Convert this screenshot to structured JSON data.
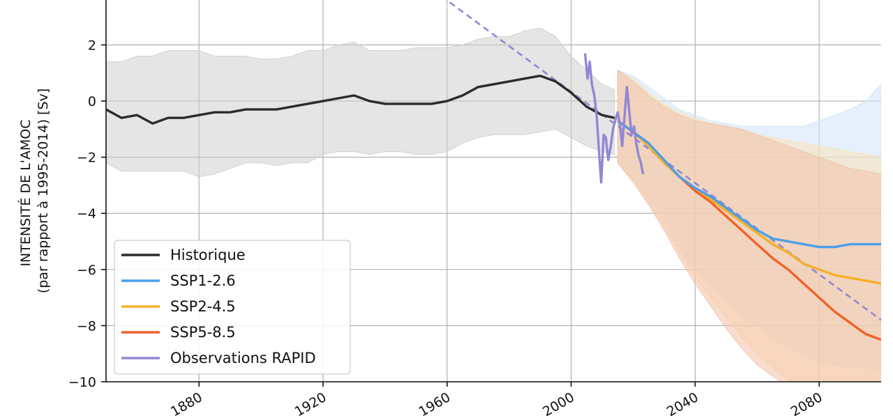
{
  "chart_data": {
    "type": "line",
    "title": "",
    "xlabel": "",
    "ylabel": [
      "INTENSITÉ DE L'AMOC",
      "(par rapport à 1995-2014) [Sv]"
    ],
    "xlim": [
      1850,
      2100
    ],
    "ylim": [
      -10,
      3.6
    ],
    "x_ticks": [
      1880,
      1920,
      1960,
      2000,
      2040,
      2080
    ],
    "y_ticks": [
      2,
      0,
      -2,
      -4,
      -6,
      -8,
      -10
    ],
    "y_tick_labels": [
      "2",
      "0",
      "−2",
      "−4",
      "−6",
      "−8",
      "−10"
    ],
    "grid": true,
    "legend_position": "lower-left",
    "series": [
      {
        "name": "Historique",
        "color": "#2b2b2b",
        "x": [
          1850,
          1855,
          1860,
          1865,
          1870,
          1875,
          1880,
          1885,
          1890,
          1895,
          1900,
          1905,
          1910,
          1915,
          1920,
          1925,
          1930,
          1935,
          1940,
          1945,
          1950,
          1955,
          1960,
          1965,
          1970,
          1975,
          1980,
          1985,
          1990,
          1995,
          2000,
          2005,
          2010,
          2014
        ],
        "y": [
          -0.3,
          -0.6,
          -0.5,
          -0.8,
          -0.6,
          -0.6,
          -0.5,
          -0.4,
          -0.4,
          -0.3,
          -0.3,
          -0.3,
          -0.2,
          -0.1,
          0.0,
          0.1,
          0.2,
          0.0,
          -0.1,
          -0.1,
          -0.1,
          -0.1,
          0.0,
          0.2,
          0.5,
          0.6,
          0.7,
          0.8,
          0.9,
          0.7,
          0.3,
          -0.2,
          -0.5,
          -0.6
        ],
        "band": {
          "color": "#cfcfcf",
          "upper": [
            1.4,
            1.4,
            1.6,
            1.6,
            1.8,
            1.8,
            1.8,
            1.6,
            1.6,
            1.6,
            1.5,
            1.5,
            1.6,
            1.8,
            1.8,
            2.0,
            2.1,
            1.8,
            1.8,
            1.8,
            1.9,
            1.9,
            1.9,
            2.0,
            2.2,
            2.3,
            2.3,
            2.5,
            2.6,
            2.3,
            1.6,
            1.1,
            0.6,
            0.4
          ],
          "lower": [
            -2.2,
            -2.5,
            -2.5,
            -2.5,
            -2.5,
            -2.5,
            -2.7,
            -2.6,
            -2.4,
            -2.2,
            -2.2,
            -2.3,
            -2.2,
            -2.2,
            -1.9,
            -1.8,
            -1.8,
            -1.9,
            -1.8,
            -1.8,
            -1.9,
            -1.9,
            -1.8,
            -1.5,
            -1.3,
            -1.2,
            -1.2,
            -1.2,
            -1.1,
            -1.0,
            -1.3,
            -1.6,
            -1.8,
            -1.9
          ]
        }
      },
      {
        "name": "SSP1-2.6",
        "color": "#4a9fe8",
        "x": [
          2015,
          2020,
          2025,
          2030,
          2035,
          2040,
          2045,
          2050,
          2055,
          2060,
          2065,
          2070,
          2075,
          2080,
          2085,
          2090,
          2095,
          2100
        ],
        "y": [
          -0.7,
          -1.1,
          -1.5,
          -2.1,
          -2.7,
          -3.1,
          -3.4,
          -3.8,
          -4.2,
          -4.6,
          -4.9,
          -5.0,
          -5.1,
          -5.2,
          -5.2,
          -5.1,
          -5.1,
          -5.1
        ],
        "band": {
          "color": "#cfe4fa",
          "upper": [
            1.1,
            0.9,
            0.5,
            0.1,
            -0.3,
            -0.5,
            -0.7,
            -0.8,
            -0.9,
            -0.9,
            -0.9,
            -0.9,
            -0.9,
            -0.7,
            -0.5,
            -0.3,
            0.0,
            0.6
          ],
          "lower": [
            -2.2,
            -2.8,
            -3.5,
            -4.3,
            -5.2,
            -6.0,
            -6.6,
            -7.1,
            -7.6,
            -8.0,
            -8.4,
            -8.8,
            -9.0,
            -9.3,
            -9.4,
            -9.5,
            -9.5,
            -9.6
          ]
        }
      },
      {
        "name": "SSP2-4.5",
        "color": "#f5b02a",
        "x": [
          2015,
          2020,
          2025,
          2030,
          2035,
          2040,
          2045,
          2050,
          2055,
          2060,
          2065,
          2070,
          2075,
          2080,
          2085,
          2090,
          2095,
          2100
        ],
        "y": [
          -0.7,
          -1.1,
          -1.6,
          -2.2,
          -2.7,
          -3.1,
          -3.5,
          -3.9,
          -4.3,
          -4.7,
          -5.1,
          -5.4,
          -5.8,
          -6.0,
          -6.2,
          -6.3,
          -6.4,
          -6.5
        ],
        "band": {
          "color": "#fbe2b8",
          "upper": [
            1.1,
            0.8,
            0.3,
            -0.1,
            -0.4,
            -0.6,
            -0.8,
            -0.9,
            -1.0,
            -1.2,
            -1.3,
            -1.4,
            -1.5,
            -1.6,
            -1.7,
            -1.8,
            -1.9,
            -2.0
          ],
          "lower": [
            -2.2,
            -2.8,
            -3.6,
            -4.5,
            -5.4,
            -6.3,
            -7.0,
            -7.7,
            -8.4,
            -9.0,
            -9.5,
            -9.9,
            -10.2,
            -10.4,
            -10.6,
            -10.8,
            -10.9,
            -11.0
          ]
        }
      },
      {
        "name": "SSP5-8.5",
        "color": "#f0622a",
        "x": [
          2015,
          2020,
          2025,
          2030,
          2035,
          2040,
          2045,
          2050,
          2055,
          2060,
          2065,
          2070,
          2075,
          2080,
          2085,
          2090,
          2095,
          2100
        ],
        "y": [
          -0.7,
          -1.1,
          -1.6,
          -2.2,
          -2.7,
          -3.2,
          -3.6,
          -4.1,
          -4.6,
          -5.1,
          -5.6,
          -6.0,
          -6.5,
          -7.0,
          -7.5,
          -7.9,
          -8.3,
          -8.5
        ],
        "band": {
          "color": "#f3c1a8",
          "upper": [
            1.1,
            0.7,
            0.2,
            -0.2,
            -0.5,
            -0.7,
            -0.8,
            -0.9,
            -1.0,
            -1.2,
            -1.4,
            -1.6,
            -1.8,
            -2.0,
            -2.2,
            -2.4,
            -2.5,
            -2.6
          ],
          "lower": [
            -2.2,
            -2.9,
            -3.7,
            -4.6,
            -5.6,
            -6.5,
            -7.3,
            -8.1,
            -8.8,
            -9.4,
            -9.8,
            -10.2,
            -10.5,
            -10.8,
            -11.0,
            -11.1,
            -11.2,
            -11.3
          ]
        }
      },
      {
        "name": "Observations RAPID",
        "color": "#9088d4",
        "x": [
          2004.5,
          2005.3,
          2006.0,
          2006.7,
          2007.5,
          2008.3,
          2009.0,
          2009.7,
          2010.5,
          2011.2,
          2012.0,
          2012.8,
          2013.5,
          2014.2,
          2015.0,
          2015.7,
          2016.5,
          2017.2,
          2018.0,
          2018.7,
          2019.5,
          2020.3,
          2021.0,
          2021.7,
          2022.5,
          2023.2
        ],
        "y": [
          1.7,
          0.8,
          1.4,
          0.6,
          0.2,
          -0.6,
          -1.8,
          -2.9,
          -1.2,
          -1.3,
          -2.1,
          -1.6,
          -1.0,
          -0.7,
          -0.4,
          -0.8,
          -1.6,
          -0.6,
          0.5,
          -0.3,
          -1.2,
          -0.9,
          -1.5,
          -1.9,
          -2.2,
          -2.6
        ]
      }
    ],
    "trend_line": {
      "color": "#9088d4",
      "x": [
        1950,
        2100
      ],
      "y": [
        4.4,
        -7.8
      ]
    }
  }
}
